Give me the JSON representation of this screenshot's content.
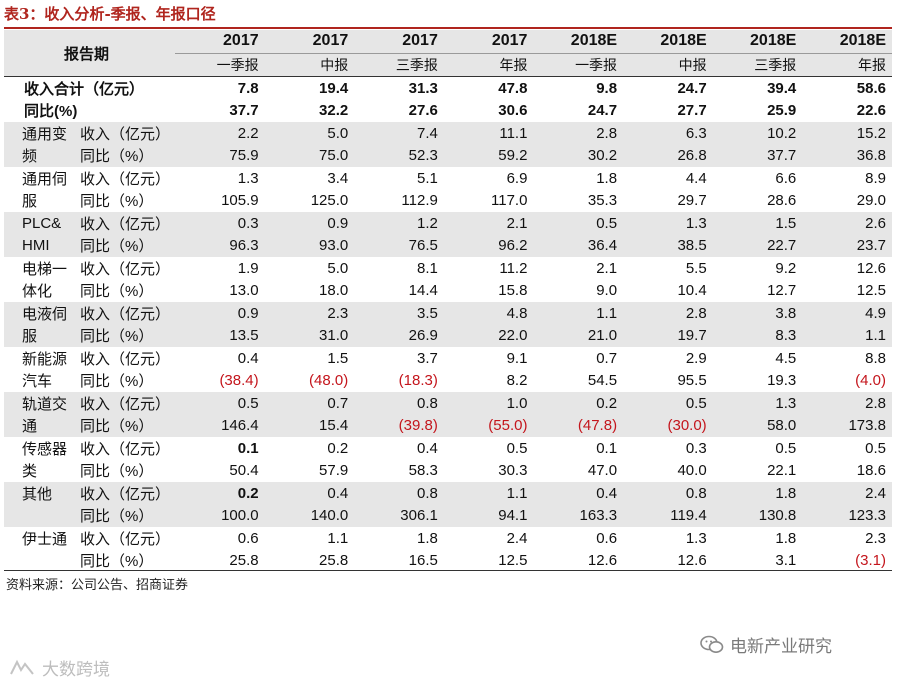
{
  "title": "表3：收入分析-季报、年报口径",
  "header": {
    "label": "报告期",
    "years": [
      "2017",
      "2017",
      "2017",
      "2017",
      "2018E",
      "2018E",
      "2018E",
      "2018E"
    ],
    "periods": [
      "一季报",
      "中报",
      "三季报",
      "年报",
      "一季报",
      "中报",
      "三季报",
      "年报"
    ]
  },
  "totals": [
    {
      "label": "收入合计（亿元）",
      "values": [
        "7.8",
        "19.4",
        "31.3",
        "47.8",
        "9.8",
        "24.7",
        "39.4",
        "58.6"
      ]
    },
    {
      "label": "同比(%)",
      "values": [
        "37.7",
        "32.2",
        "27.6",
        "30.6",
        "24.7",
        "27.7",
        "25.9",
        "22.6"
      ]
    }
  ],
  "segments": [
    {
      "name_lines": [
        "通用变",
        "频"
      ],
      "rows": [
        {
          "metric": "收入（亿元）",
          "values": [
            "2.2",
            "5.0",
            "7.4",
            "11.1",
            "2.8",
            "6.3",
            "10.2",
            "15.2"
          ]
        },
        {
          "metric": "同比（%）",
          "values": [
            "75.9",
            "75.0",
            "52.3",
            "59.2",
            "30.2",
            "26.8",
            "37.7",
            "36.8"
          ]
        }
      ]
    },
    {
      "name_lines": [
        "通用伺",
        "服"
      ],
      "rows": [
        {
          "metric": "收入（亿元）",
          "values": [
            "1.3",
            "3.4",
            "5.1",
            "6.9",
            "1.8",
            "4.4",
            "6.6",
            "8.9"
          ]
        },
        {
          "metric": "同比（%）",
          "values": [
            "105.9",
            "125.0",
            "112.9",
            "117.0",
            "35.3",
            "29.7",
            "28.6",
            "29.0"
          ]
        }
      ]
    },
    {
      "name_lines": [
        "PLC&",
        "HMI"
      ],
      "rows": [
        {
          "metric": "收入（亿元）",
          "values": [
            "0.3",
            "0.9",
            "1.2",
            "2.1",
            "0.5",
            "1.3",
            "1.5",
            "2.6"
          ]
        },
        {
          "metric": "同比（%）",
          "values": [
            "96.3",
            "93.0",
            "76.5",
            "96.2",
            "36.4",
            "38.5",
            "22.7",
            "23.7"
          ]
        }
      ]
    },
    {
      "name_lines": [
        "电梯一",
        "体化"
      ],
      "rows": [
        {
          "metric": "收入（亿元）",
          "values": [
            "1.9",
            "5.0",
            "8.1",
            "11.2",
            "2.1",
            "5.5",
            "9.2",
            "12.6"
          ]
        },
        {
          "metric": "同比（%）",
          "values": [
            "13.0",
            "18.0",
            "14.4",
            "15.8",
            "9.0",
            "10.4",
            "12.7",
            "12.5"
          ]
        }
      ]
    },
    {
      "name_lines": [
        "电液伺",
        "服"
      ],
      "rows": [
        {
          "metric": "收入（亿元）",
          "values": [
            "0.9",
            "2.3",
            "3.5",
            "4.8",
            "1.1",
            "2.8",
            "3.8",
            "4.9"
          ]
        },
        {
          "metric": "同比（%）",
          "values": [
            "13.5",
            "31.0",
            "26.9",
            "22.0",
            "21.0",
            "19.7",
            "8.3",
            "1.1"
          ]
        }
      ]
    },
    {
      "name_lines": [
        "新能源",
        "汽车"
      ],
      "rows": [
        {
          "metric": "收入（亿元）",
          "values": [
            "0.4",
            "1.5",
            "3.7",
            "9.1",
            "0.7",
            "2.9",
            "4.5",
            "8.8"
          ]
        },
        {
          "metric": "同比（%）",
          "values": [
            "(38.4)",
            "(48.0)",
            "(18.3)",
            "8.2",
            "54.5",
            "95.5",
            "19.3",
            "(4.0)"
          ]
        }
      ]
    },
    {
      "name_lines": [
        "轨道交",
        "通"
      ],
      "rows": [
        {
          "metric": "收入（亿元）",
          "values": [
            "0.5",
            "0.7",
            "0.8",
            "1.0",
            "0.2",
            "0.5",
            "1.3",
            "2.8"
          ]
        },
        {
          "metric": "同比（%）",
          "values": [
            "146.4",
            "15.4",
            "(39.8)",
            "(55.0)",
            "(47.8)",
            "(30.0)",
            "58.0",
            "173.8"
          ]
        }
      ]
    },
    {
      "name_lines": [
        "传感器",
        "类"
      ],
      "rows": [
        {
          "metric": "收入（亿元）",
          "values": [
            "0.1",
            "0.2",
            "0.4",
            "0.5",
            "0.1",
            "0.3",
            "0.5",
            "0.5"
          ]
        },
        {
          "metric": "同比（%）",
          "values": [
            "50.4",
            "57.9",
            "58.3",
            "30.3",
            "47.0",
            "40.0",
            "22.1",
            "18.6"
          ]
        }
      ]
    },
    {
      "name_lines": [
        "其他",
        ""
      ],
      "rows": [
        {
          "metric": "收入（亿元）",
          "values": [
            "0.2",
            "0.4",
            "0.8",
            "1.1",
            "0.4",
            "0.8",
            "1.8",
            "2.4"
          ]
        },
        {
          "metric": "同比（%）",
          "values": [
            "100.0",
            "140.0",
            "306.1",
            "94.1",
            "163.3",
            "119.4",
            "130.8",
            "123.3"
          ]
        }
      ]
    },
    {
      "name_lines": [
        "伊士通",
        ""
      ],
      "rows": [
        {
          "metric": "收入（亿元）",
          "values": [
            "0.6",
            "1.1",
            "1.8",
            "2.4",
            "0.6",
            "1.3",
            "1.8",
            "2.3"
          ]
        },
        {
          "metric": "同比（%）",
          "values": [
            "25.8",
            "25.8",
            "16.5",
            "12.5",
            "12.6",
            "12.6",
            "3.1",
            "(3.1)"
          ]
        }
      ]
    }
  ],
  "source": "资料来源：公司公告、招商证券",
  "watermark_right": "电新产业研究",
  "watermark_left": "大数跨境",
  "colors": {
    "title_red": "#b0251e",
    "negative_red": "#c4151c",
    "shade_gray": "#e6e6e6"
  }
}
